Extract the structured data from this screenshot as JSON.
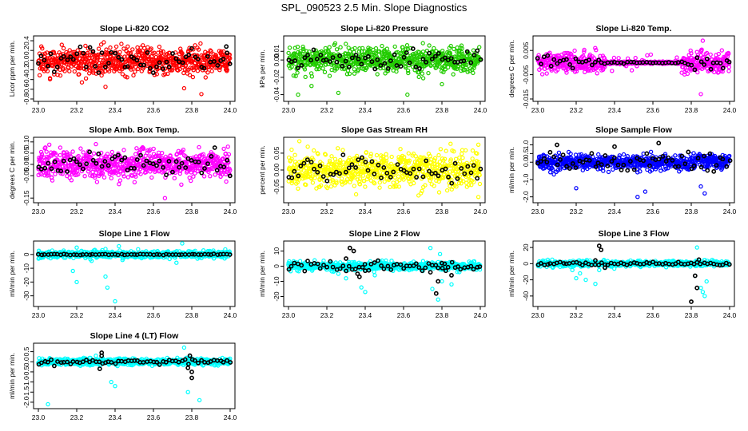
{
  "page_title": "SPL_090523  2.5 Min. Slope Diagnostics",
  "chart_data": [
    {
      "id": "co2",
      "type": "scatter",
      "title": "Slope Li-820 CO2",
      "ylabel": "Licor ppm per min.",
      "xlim": [
        23.0,
        24.0
      ],
      "ylim": [
        -0.8,
        0.45
      ],
      "x_ticks": [
        "23.0",
        "23.2",
        "23.4",
        "23.6",
        "23.8",
        "24.0"
      ],
      "y_ticks": [
        {
          "v": -0.8,
          "label": "-0.8"
        },
        {
          "v": -0.6,
          "label": "-0.6"
        },
        {
          "v": -0.4,
          "label": "-0.4"
        },
        {
          "v": -0.2,
          "label": "-0.2"
        },
        {
          "v": 0.0,
          "label": "0.0"
        },
        {
          "v": 0.2,
          "label": "0.2"
        },
        {
          "v": 0.4,
          "label": "0.4"
        }
      ],
      "color": "#ff0000",
      "center": -0.02,
      "spread": 0.13,
      "tail": 0.35,
      "outliers": [
        [
          23.76,
          -0.58
        ],
        [
          23.85,
          -0.7
        ],
        [
          23.35,
          -0.55
        ]
      ],
      "black_spread": 0.12,
      "black_extra": [
        [
          23.98,
          0.28
        ]
      ]
    },
    {
      "id": "pressure",
      "type": "scatter",
      "title": "Slope Li-820 Pressure",
      "ylabel": "kPa per min.",
      "xlim": [
        23.0,
        24.0
      ],
      "ylim": [
        -0.045,
        0.025
      ],
      "x_ticks": [
        "23.0",
        "23.2",
        "23.4",
        "23.6",
        "23.8",
        "24.0"
      ],
      "y_ticks": [
        {
          "v": -0.04,
          "label": "-0.04"
        },
        {
          "v": -0.02,
          "label": "-0.02"
        },
        {
          "v": 0.0,
          "label": "0.00"
        },
        {
          "v": 0.01,
          "label": "0.01"
        }
      ],
      "color": "#22cc00",
      "center": 0.0,
      "spread": 0.007,
      "tail": 0.02,
      "outliers": [
        [
          23.05,
          -0.04
        ],
        [
          23.26,
          -0.038
        ],
        [
          23.62,
          -0.04
        ],
        [
          23.8,
          -0.028
        ],
        [
          23.12,
          -0.03
        ]
      ],
      "black_spread": 0.005,
      "black_extra": []
    },
    {
      "id": "temp",
      "type": "scatter",
      "title": "Slope Li-820 Temp.",
      "ylabel": "degrees C per min.",
      "xlim": [
        23.0,
        24.0
      ],
      "ylim": [
        -0.015,
        0.01
      ],
      "x_ticks": [
        "23.0",
        "23.2",
        "23.4",
        "23.6",
        "23.8",
        "24.0"
      ],
      "y_ticks": [
        {
          "v": -0.015,
          "label": "-0.015"
        },
        {
          "v": -0.005,
          "label": "-0.005"
        },
        {
          "v": 0.005,
          "label": "0.005"
        }
      ],
      "color": "#ff00ff",
      "center": 0.0,
      "spread": 0.002,
      "tail": 0.004,
      "quiet": [
        23.35,
        23.75
      ],
      "outliers": [
        [
          23.85,
          -0.013
        ],
        [
          23.86,
          0.009
        ]
      ],
      "black_spread": 0.0015,
      "black_extra": []
    },
    {
      "id": "boxtemp",
      "type": "scatter",
      "title": "Slope Amb. Box Temp.",
      "ylabel": "degrees C per min.",
      "xlim": [
        23.0,
        24.0
      ],
      "ylim": [
        -0.16,
        0.11
      ],
      "x_ticks": [
        "23.0",
        "23.2",
        "23.4",
        "23.6",
        "23.8",
        "24.0"
      ],
      "y_ticks": [
        {
          "v": -0.15,
          "label": "-0.15"
        },
        {
          "v": -0.05,
          "label": "-0.05"
        },
        {
          "v": 0.0,
          "label": "0.00"
        },
        {
          "v": 0.05,
          "label": "0.05"
        },
        {
          "v": 0.1,
          "label": "0.10"
        }
      ],
      "color": "#ff00ff",
      "center": 0.0,
      "spread": 0.03,
      "tail": 0.08,
      "outliers": [
        [
          23.66,
          -0.15
        ],
        [
          23.3,
          0.09
        ]
      ],
      "black_spread": 0.025,
      "black_extra": []
    },
    {
      "id": "rh",
      "type": "scatter",
      "title": "Slope Gas Stream RH",
      "ylabel": "percent per min.",
      "xlim": [
        23.0,
        24.0
      ],
      "ylim": [
        -0.09,
        0.09
      ],
      "x_ticks": [
        "23.0",
        "23.2",
        "23.4",
        "23.6",
        "23.8",
        "24.0"
      ],
      "y_ticks": [
        {
          "v": -0.05,
          "label": "-0.05"
        },
        {
          "v": 0.0,
          "label": "0.00"
        },
        {
          "v": 0.05,
          "label": "0.05"
        }
      ],
      "color": "#ffff00",
      "center": 0.0,
      "spread": 0.025,
      "tail": 0.06,
      "outliers": [
        [
          23.99,
          -0.08
        ],
        [
          23.99,
          0.075
        ]
      ],
      "black_spread": 0.02,
      "black_extra": []
    },
    {
      "id": "sampleflow",
      "type": "scatter",
      "title": "Slope Sample Flow",
      "ylabel": "ml/min per min.",
      "xlim": [
        23.0,
        24.0
      ],
      "ylim": [
        -2.2,
        1.3
      ],
      "x_ticks": [
        "23.0",
        "23.2",
        "23.4",
        "23.6",
        "23.8",
        "24.0"
      ],
      "y_ticks": [
        {
          "v": -2.0,
          "label": "-2.0"
        },
        {
          "v": -1.0,
          "label": "-1.0"
        },
        {
          "v": 0.0,
          "label": "0.0"
        },
        {
          "v": 0.5,
          "label": "0.5"
        },
        {
          "v": 1.0,
          "label": "1.0"
        }
      ],
      "color": "#0000ff",
      "center": 0.0,
      "spread": 0.2,
      "tail": 0.6,
      "outliers": [
        [
          23.2,
          -1.5
        ],
        [
          23.52,
          -2.0
        ],
        [
          23.56,
          -1.7
        ],
        [
          23.85,
          -1.4
        ],
        [
          23.87,
          -1.8
        ]
      ],
      "black_spread": 0.3,
      "black_extra": [
        [
          23.1,
          1.0
        ],
        [
          23.4,
          0.9
        ],
        [
          23.63,
          1.1
        ]
      ]
    },
    {
      "id": "line1",
      "type": "scatter",
      "title": "Slope Line 1 Flow",
      "ylabel": "ml/min per min.",
      "xlim": [
        23.0,
        24.0
      ],
      "ylim": [
        -36,
        8
      ],
      "x_ticks": [
        "23.0",
        "23.2",
        "23.4",
        "23.6",
        "23.8",
        "24.0"
      ],
      "y_ticks": [
        {
          "v": -30,
          "label": "-30"
        },
        {
          "v": -20,
          "label": "-20"
        },
        {
          "v": -10,
          "label": "-10"
        },
        {
          "v": 0,
          "label": "0"
        }
      ],
      "color": "#00ffff",
      "center": 0.0,
      "spread": 1.2,
      "tail": 3,
      "outliers": [
        [
          23.18,
          -12
        ],
        [
          23.2,
          -20
        ],
        [
          23.35,
          -16
        ],
        [
          23.36,
          -24
        ],
        [
          23.4,
          -34
        ],
        [
          23.72,
          -6
        ],
        [
          23.75,
          8
        ],
        [
          23.2,
          5
        ],
        [
          23.35,
          4
        ],
        [
          23.42,
          6
        ]
      ],
      "black_spread": 0.2,
      "black_extra": []
    },
    {
      "id": "line2",
      "type": "scatter",
      "title": "Slope Line 2 Flow",
      "ylabel": "ml/min per min.",
      "xlim": [
        23.0,
        24.0
      ],
      "ylim": [
        -25,
        15
      ],
      "x_ticks": [
        "23.0",
        "23.2",
        "23.4",
        "23.6",
        "23.8",
        "24.0"
      ],
      "y_ticks": [
        {
          "v": -20,
          "label": "-20"
        },
        {
          "v": -10,
          "label": "-10"
        },
        {
          "v": 0,
          "label": "0"
        },
        {
          "v": 10,
          "label": "10"
        }
      ],
      "color": "#00ffff",
      "center": 0.0,
      "spread": 1.2,
      "tail": 4,
      "outliers": [
        [
          23.26,
          -5
        ],
        [
          23.3,
          -8
        ],
        [
          23.38,
          -14
        ],
        [
          23.4,
          -17
        ],
        [
          23.45,
          -6
        ],
        [
          23.75,
          -15
        ],
        [
          23.78,
          -22
        ],
        [
          23.8,
          -10
        ],
        [
          23.74,
          12
        ],
        [
          23.79,
          8
        ],
        [
          23.85,
          -12
        ]
      ],
      "black_spread": 1.5,
      "black_extra": [
        [
          23.32,
          12
        ],
        [
          23.34,
          10
        ],
        [
          23.3,
          5
        ],
        [
          23.36,
          -5
        ],
        [
          23.37,
          -7
        ],
        [
          23.4,
          -3
        ],
        [
          23.74,
          -4
        ],
        [
          23.77,
          -18
        ],
        [
          23.78,
          -10
        ],
        [
          23.8,
          2
        ],
        [
          23.85,
          -6
        ],
        [
          23.82,
          -3
        ]
      ]
    },
    {
      "id": "line3",
      "type": "scatter",
      "title": "Slope Line 3 Flow",
      "ylabel": "ml/min per min.",
      "xlim": [
        23.0,
        24.0
      ],
      "ylim": [
        -50,
        25
      ],
      "x_ticks": [
        "23.0",
        "23.2",
        "23.4",
        "23.6",
        "23.8",
        "24.0"
      ],
      "y_ticks": [
        {
          "v": -40,
          "label": "-40"
        },
        {
          "v": -20,
          "label": "-20"
        },
        {
          "v": 0,
          "label": "0"
        },
        {
          "v": 20,
          "label": "20"
        }
      ],
      "color": "#00ffff",
      "center": 0.0,
      "spread": 1.5,
      "tail": 5,
      "outliers": [
        [
          23.18,
          -8
        ],
        [
          23.2,
          -18
        ],
        [
          23.22,
          -12
        ],
        [
          23.25,
          -20
        ],
        [
          23.3,
          -25
        ],
        [
          23.32,
          -8
        ],
        [
          23.82,
          -15
        ],
        [
          23.85,
          -30
        ],
        [
          23.87,
          -40
        ],
        [
          23.83,
          20
        ],
        [
          23.86,
          -35
        ],
        [
          23.88,
          -22
        ]
      ],
      "black_spread": 1.0,
      "black_extra": [
        [
          23.32,
          22
        ],
        [
          23.33,
          17
        ],
        [
          23.3,
          4
        ],
        [
          23.35,
          -5
        ],
        [
          23.8,
          -47
        ],
        [
          23.82,
          -15
        ],
        [
          23.83,
          -30
        ],
        [
          23.84,
          5
        ]
      ]
    },
    {
      "id": "line4",
      "type": "scatter",
      "title": "Slope Line 4 (LT) Flow",
      "ylabel": "ml/min per min.",
      "xlim": [
        23.0,
        24.0
      ],
      "ylim": [
        -2.2,
        0.8
      ],
      "x_ticks": [
        "23.0",
        "23.2",
        "23.4",
        "23.6",
        "23.8",
        "24.0"
      ],
      "y_ticks": [
        {
          "v": -2.0,
          "label": "-2.0"
        },
        {
          "v": -1.5,
          "label": "-1.5"
        },
        {
          "v": -1.0,
          "label": "-1.0"
        },
        {
          "v": -0.5,
          "label": "-0.5"
        },
        {
          "v": 0.0,
          "label": "0.0"
        },
        {
          "v": 0.5,
          "label": "0.5"
        }
      ],
      "color": "#00ffff",
      "center": 0.0,
      "spread": 0.08,
      "tail": 0.2,
      "outliers": [
        [
          23.38,
          -1.0
        ],
        [
          23.4,
          -1.2
        ],
        [
          23.05,
          -2.1
        ],
        [
          23.78,
          -1.5
        ],
        [
          23.84,
          -1.9
        ],
        [
          23.76,
          0.7
        ],
        [
          23.3,
          0.3
        ]
      ],
      "black_spread": 0.06,
      "black_extra": [
        [
          23.33,
          0.45
        ],
        [
          23.33,
          0.3
        ],
        [
          23.32,
          -0.35
        ],
        [
          23.78,
          -0.3
        ],
        [
          23.8,
          -0.5
        ],
        [
          23.8,
          -0.8
        ],
        [
          23.79,
          0.3
        ]
      ]
    }
  ]
}
